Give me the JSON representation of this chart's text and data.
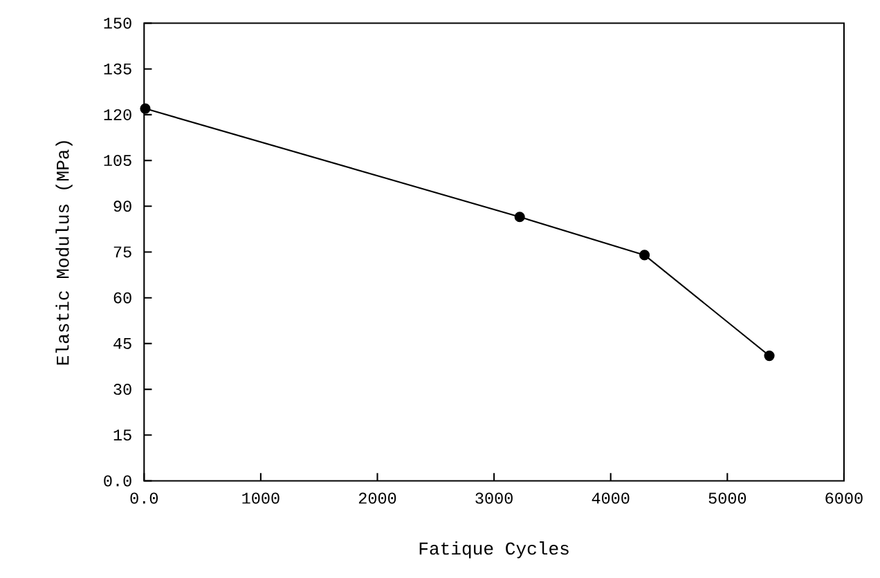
{
  "chart_data": {
    "type": "line",
    "xlabel": "Fatique Cycles",
    "ylabel": "Elastic Modulus (MPa)",
    "x": [
      10,
      3220,
      4290,
      5360
    ],
    "series": [
      {
        "color": "#000000",
        "values": [
          122,
          86.5,
          74,
          41
        ]
      }
    ],
    "xlim": [
      0,
      6000
    ],
    "ylim": [
      0,
      150
    ],
    "xticks": [
      {
        "value": 0,
        "label": "0.0"
      },
      1000,
      2000,
      3000,
      4000,
      5000,
      6000
    ],
    "yticks": [
      {
        "value": 0,
        "label": "0.0"
      },
      15,
      30,
      45,
      60,
      75,
      90,
      105,
      120,
      135,
      150
    ],
    "marker": "circle",
    "line_style": "solid"
  }
}
